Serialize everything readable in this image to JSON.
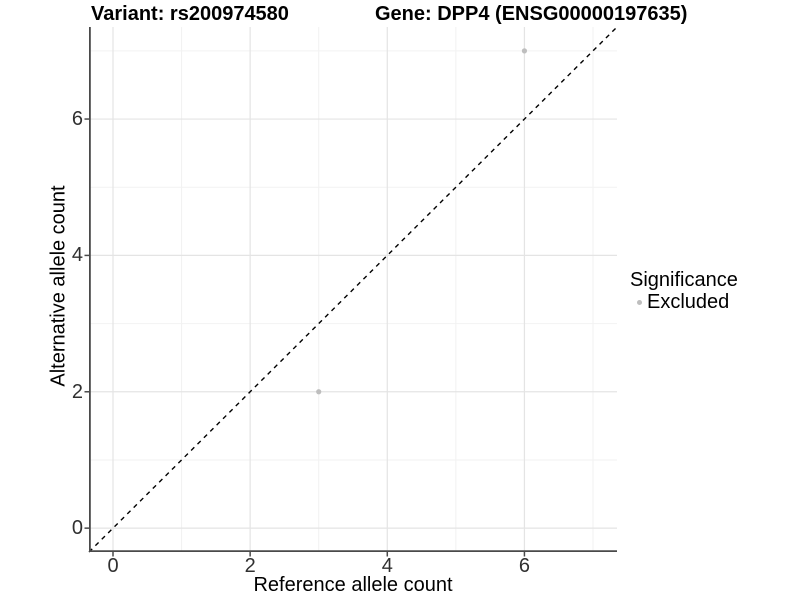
{
  "figure": {
    "title_variant": "Variant: rs200974580",
    "title_gene": "Gene: DPP4 (ENSG00000197635)"
  },
  "chart_data": {
    "type": "scatter",
    "title": "Variant: rs200974580    Gene: DPP4 (ENSG00000197635)",
    "xlabel": "Reference allele count",
    "ylabel": "Alternative allele count",
    "xlim": [
      -0.35,
      7.35
    ],
    "ylim": [
      -0.35,
      7.35
    ],
    "x_ticks": [
      0,
      2,
      4,
      6
    ],
    "y_ticks": [
      0,
      2,
      4,
      6
    ],
    "x_minor_ticks": [
      1,
      3,
      5,
      7
    ],
    "y_minor_ticks": [
      1,
      3,
      5,
      7
    ],
    "grid": "major and minor, light grey on white",
    "points": [
      {
        "x": 3,
        "y": 2,
        "significance": "Excluded"
      },
      {
        "x": 6,
        "y": 7,
        "significance": "Excluded"
      }
    ],
    "reference_line": {
      "type": "identity",
      "slope": 1,
      "intercept": 0,
      "style": "dashed",
      "color": "#000000"
    },
    "legend": {
      "title": "Significance",
      "position": "right",
      "items": [
        {
          "label": "Excluded",
          "color": "#bebebe"
        }
      ]
    },
    "colors": {
      "point": "#bebebe",
      "axis_line": "#4a4a4a",
      "grid_major": "#e4e4e4",
      "grid_minor": "#f2f2f2",
      "tick_text": "#303030",
      "title_text": "#000000"
    }
  }
}
